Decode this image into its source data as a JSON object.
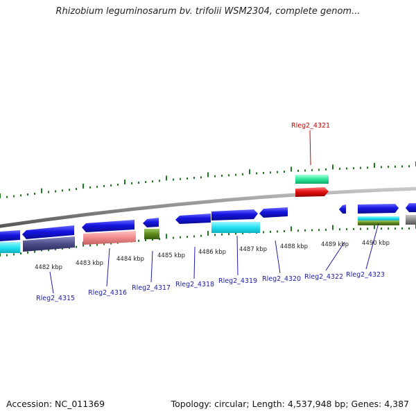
{
  "title": "Rhizobium leguminosarum bv. trifolii WSM2304, complete genom...",
  "footer": {
    "accession": "Accession: NC_011369",
    "summary": "Topology: circular; Length: 4,537,948 bp; Genes: 4,387"
  },
  "kbp_labels": [
    "4482 kbp",
    "4483 kbp",
    "4484 kbp",
    "4485 kbp",
    "4486 kbp",
    "4487 kbp",
    "4488 kbp",
    "4489 kbp",
    "4490 kbp"
  ],
  "gene_labels": {
    "top": "Rleg2_4321",
    "bottom": [
      "Rleg2_4315",
      "Rleg2_4316",
      "Rleg2_4317",
      "Rleg2_4318",
      "Rleg2_4319",
      "Rleg2_4320",
      "Rleg2_4322",
      "Rleg2_4323"
    ]
  },
  "colors": {
    "backbone": "#8a8a8a",
    "cds": "#1515e0",
    "cyan": "#22e0f0",
    "navy": "#4a4a86",
    "salmon": "#f08a8a",
    "olive": "#5f8a1e",
    "green": "#2ee89c",
    "red": "#e01010",
    "tick": "#1b7a1b",
    "label_blue": "#1a1aa6",
    "label_red": "#cc0000"
  }
}
